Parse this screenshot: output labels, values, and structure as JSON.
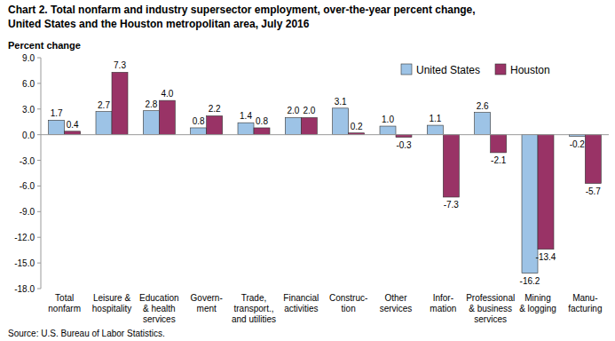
{
  "chart_data": {
    "type": "bar",
    "title": "Chart 2. Total nonfarm and industry  supersector  employment, over-the-year percent change,\nUnited States and the Houston  metropolitan area, July 2016",
    "y_label": "Percent change",
    "source": "Source: U.S. Bureau of Labor Statistics.",
    "categories": [
      "Total\nnonfarm",
      "Leisure &\nhospitality",
      "Education\n& health\nservices",
      "Govern-\nment",
      "Trade,\ntransport.,\nand utilities",
      "Financial\nactivities",
      "Construc-\ntion",
      "Other\nservices",
      "Infor-\nmation",
      "Professional\n& business\nservices",
      "Mining\n& logging",
      "Manu-\nfacturing"
    ],
    "series": [
      {
        "name": "United States",
        "color": "#9dc3e6",
        "values": [
          1.7,
          2.7,
          2.8,
          0.8,
          1.4,
          2.0,
          3.1,
          1.0,
          1.1,
          2.6,
          -16.2,
          -0.2
        ],
        "value_labels": [
          "1.7",
          "2.7",
          "2.8",
          "0.8",
          "1.4",
          "2.0",
          "3.1",
          "1.0",
          "1.1",
          "2.6",
          "-16.2",
          "-0.2"
        ]
      },
      {
        "name": "Houston",
        "color": "#993366",
        "values": [
          0.4,
          7.3,
          4.0,
          2.2,
          0.8,
          2.0,
          0.2,
          -0.3,
          -7.3,
          -2.1,
          -13.4,
          -5.7
        ],
        "value_labels": [
          "0.4",
          "7.3",
          "4.0",
          "2.2",
          "0.8",
          "2.0",
          "0.2",
          "-0.3",
          "-7.3",
          "-2.1",
          "-13.4",
          "-5.7"
        ]
      }
    ],
    "ylim": [
      -18,
      9
    ],
    "yticks": [
      {
        "value": 9,
        "label": "9.0"
      },
      {
        "value": 6,
        "label": "6.0"
      },
      {
        "value": 3,
        "label": "3.0"
      },
      {
        "value": 0,
        "label": "0.0"
      },
      {
        "value": -3,
        "label": "-3.0"
      },
      {
        "value": -6,
        "label": "-6.0"
      },
      {
        "value": -9,
        "label": "-9.0"
      },
      {
        "value": -12,
        "label": "-12.0"
      },
      {
        "value": -15,
        "label": "-15.0"
      },
      {
        "value": -18,
        "label": "-18.0"
      }
    ],
    "grid": false,
    "legend": "upper right",
    "data_labels": true
  }
}
